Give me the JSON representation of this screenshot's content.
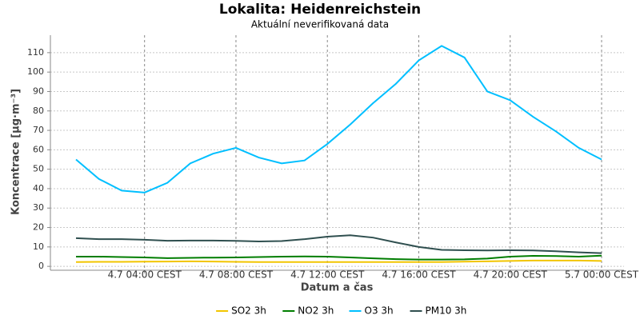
{
  "chart_data": {
    "type": "line",
    "title": "Lokalita: Heidenreichstein",
    "subtitle": "Aktuální neverifikovaná data",
    "x_label": "Datum a čas",
    "y_label": "Koncentrace [µg·m⁻³]",
    "x": [
      "4.7 01:00 CEST",
      "4.7 02:00 CEST",
      "4.7 03:00 CEST",
      "4.7 04:00 CEST",
      "4.7 05:00 CEST",
      "4.7 06:00 CEST",
      "4.7 07:00 CEST",
      "4.7 08:00 CEST",
      "4.7 09:00 CEST",
      "4.7 10:00 CEST",
      "4.7 11:00 CEST",
      "4.7 12:00 CEST",
      "4.7 13:00 CEST",
      "4.7 14:00 CEST",
      "4.7 15:00 CEST",
      "4.7 16:00 CEST",
      "4.7 17:00 CEST",
      "4.7 18:00 CEST",
      "4.7 19:00 CEST",
      "4.7 20:00 CEST",
      "4.7 21:00 CEST",
      "4.7 22:00 CEST",
      "4.7 23:00 CEST",
      "5.7 00:00 CEST"
    ],
    "xticks": [
      "4.7 04:00 CEST",
      "4.7 08:00 CEST",
      "4.7 12:00 CEST",
      "4.7 16:00 CEST",
      "4.7 20:00 CEST",
      "5.7 00:00 CEST"
    ],
    "ylim": [
      -2,
      119
    ],
    "yticks": [
      0,
      10,
      20,
      30,
      40,
      50,
      60,
      70,
      80,
      90,
      100,
      110
    ],
    "grid": true,
    "legend": "bottom",
    "series": [
      {
        "name": "SO2 3h",
        "color": "#f2c500",
        "values": [
          2.2,
          2.3,
          2.3,
          2.4,
          2.5,
          2.6,
          2.5,
          2.3,
          2.2,
          2.2,
          2.2,
          2.2,
          2.2,
          2.2,
          2.2,
          2.2,
          2.2,
          2.4,
          2.6,
          2.8,
          3,
          3,
          3,
          2.8
        ]
      },
      {
        "name": "NO2 3h",
        "color": "#007d00",
        "values": [
          5,
          5,
          4.8,
          4.6,
          4.2,
          4.4,
          4.5,
          4.6,
          4.8,
          5,
          5.1,
          5,
          4.6,
          4.1,
          3.7,
          3.5,
          3.5,
          3.6,
          4,
          5,
          5.4,
          5.3,
          5,
          5.5
        ]
      },
      {
        "name": "O3 3h",
        "color": "#00bfff",
        "values": [
          55,
          45,
          39,
          38,
          43,
          53,
          58,
          61,
          56,
          53,
          54.5,
          63,
          73,
          84,
          94,
          106,
          113.5,
          107.5,
          90,
          85.5,
          77,
          69.5,
          61,
          55
        ]
      },
      {
        "name": "PM10 3h",
        "color": "#2f4f4f",
        "values": [
          14.5,
          14,
          14,
          13.7,
          13.2,
          13.3,
          13.3,
          13.1,
          12.8,
          13,
          14,
          15.3,
          16,
          14.8,
          12.3,
          10,
          8.5,
          8.3,
          8.2,
          8.3,
          8.2,
          7.8,
          7.2,
          6.8
        ]
      }
    ]
  }
}
